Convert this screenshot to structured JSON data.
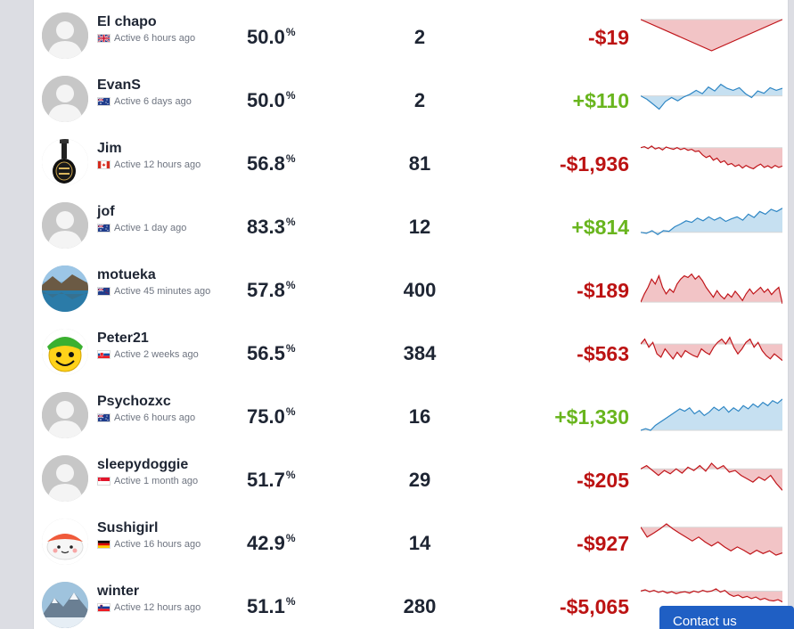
{
  "players": [
    {
      "name": "El chapo",
      "status": "Active 6 hours ago",
      "country": "uk",
      "avatar": "default",
      "win_pct": "50.0",
      "count": "2",
      "profit": "-$19",
      "trend": [
        0.95,
        0.0,
        0.95
      ]
    },
    {
      "name": "EvanS",
      "status": "Active 6 days ago",
      "country": "au",
      "avatar": "default",
      "win_pct": "50.0",
      "count": "2",
      "profit": "+$110",
      "trend": [
        0.55,
        0.45,
        0.3,
        0.15,
        0.38,
        0.5,
        0.4,
        0.52,
        0.6,
        0.72,
        0.62,
        0.82,
        0.7,
        0.9,
        0.78,
        0.72,
        0.8,
        0.62,
        0.5,
        0.7,
        0.63,
        0.8,
        0.72,
        0.78
      ]
    },
    {
      "name": "Jim",
      "status": "Active 12 hours ago",
      "country": "ca",
      "avatar": "guitar",
      "win_pct": "56.8",
      "count": "81",
      "profit": "-$1,936",
      "trend": [
        0.9,
        0.93,
        0.87,
        0.95,
        0.86,
        0.9,
        0.83,
        0.92,
        0.88,
        0.85,
        0.9,
        0.84,
        0.88,
        0.82,
        0.85,
        0.78,
        0.8,
        0.68,
        0.6,
        0.65,
        0.52,
        0.58,
        0.45,
        0.5,
        0.38,
        0.42,
        0.33,
        0.38,
        0.28,
        0.36,
        0.3,
        0.26,
        0.34,
        0.4,
        0.3,
        0.35,
        0.28,
        0.36,
        0.3,
        0.34
      ]
    },
    {
      "name": "jof",
      "status": "Active 1 day ago",
      "country": "au",
      "avatar": "default",
      "win_pct": "83.3",
      "count": "12",
      "profit": "+$814",
      "trend": [
        0.25,
        0.22,
        0.3,
        0.18,
        0.3,
        0.28,
        0.42,
        0.5,
        0.6,
        0.55,
        0.68,
        0.6,
        0.72,
        0.62,
        0.7,
        0.58,
        0.66,
        0.72,
        0.62,
        0.8,
        0.7,
        0.88,
        0.8,
        0.95,
        0.88,
        0.98
      ]
    },
    {
      "name": "motueka",
      "status": "Active 45 minutes ago",
      "country": "nz",
      "avatar": "lake",
      "win_pct": "57.8",
      "count": "400",
      "profit": "-$189",
      "trend": [
        0.05,
        0.3,
        0.5,
        0.75,
        0.6,
        0.85,
        0.5,
        0.3,
        0.45,
        0.35,
        0.6,
        0.75,
        0.85,
        0.8,
        0.9,
        0.75,
        0.85,
        0.7,
        0.5,
        0.35,
        0.2,
        0.4,
        0.25,
        0.15,
        0.3,
        0.2,
        0.38,
        0.25,
        0.1,
        0.3,
        0.45,
        0.3,
        0.4,
        0.5,
        0.35,
        0.45,
        0.28,
        0.4,
        0.5,
        0.0
      ]
    },
    {
      "name": "Peter21",
      "status": "Active 2 weeks ago",
      "country": "sk",
      "avatar": "smiley",
      "win_pct": "56.5",
      "count": "384",
      "profit": "-$563",
      "trend": [
        0.7,
        0.85,
        0.6,
        0.75,
        0.4,
        0.3,
        0.55,
        0.4,
        0.25,
        0.45,
        0.3,
        0.5,
        0.42,
        0.35,
        0.3,
        0.55,
        0.45,
        0.38,
        0.6,
        0.75,
        0.85,
        0.7,
        0.9,
        0.6,
        0.4,
        0.55,
        0.75,
        0.85,
        0.6,
        0.75,
        0.5,
        0.35,
        0.25,
        0.4,
        0.3,
        0.2
      ]
    },
    {
      "name": "Psychozxc",
      "status": "Active 6 hours ago",
      "country": "au",
      "avatar": "default",
      "win_pct": "75.0",
      "count": "16",
      "profit": "+$1,330",
      "trend": [
        0.0,
        0.05,
        0.0,
        0.15,
        0.25,
        0.35,
        0.45,
        0.55,
        0.65,
        0.58,
        0.68,
        0.5,
        0.6,
        0.45,
        0.55,
        0.7,
        0.6,
        0.72,
        0.55,
        0.68,
        0.58,
        0.75,
        0.65,
        0.8,
        0.7,
        0.85,
        0.75,
        0.9,
        0.82,
        0.95
      ]
    },
    {
      "name": "sleepydoggie",
      "status": "Active 1 month ago",
      "country": "sg",
      "avatar": "default",
      "win_pct": "51.7",
      "count": "29",
      "profit": "-$205",
      "trend": [
        0.75,
        0.85,
        0.7,
        0.55,
        0.7,
        0.6,
        0.75,
        0.62,
        0.8,
        0.7,
        0.85,
        0.68,
        0.92,
        0.75,
        0.85,
        0.65,
        0.7,
        0.55,
        0.45,
        0.35,
        0.5,
        0.4,
        0.55,
        0.3,
        0.1
      ]
    },
    {
      "name": "Sushigirl",
      "status": "Active 16 hours ago",
      "country": "de",
      "avatar": "sushi",
      "win_pct": "42.9",
      "count": "14",
      "profit": "-$927",
      "trend": [
        0.9,
        0.6,
        0.72,
        0.85,
        1.0,
        0.85,
        0.72,
        0.6,
        0.48,
        0.6,
        0.45,
        0.33,
        0.45,
        0.3,
        0.18,
        0.3,
        0.2,
        0.08,
        0.2,
        0.1,
        0.18,
        0.05,
        0.12
      ]
    },
    {
      "name": "winter",
      "status": "Active 12 hours ago",
      "country": "si",
      "avatar": "mountain",
      "win_pct": "51.1",
      "count": "280",
      "profit": "-$5,065",
      "trend": [
        0.88,
        0.92,
        0.86,
        0.9,
        0.84,
        0.88,
        0.82,
        0.86,
        0.8,
        0.84,
        0.86,
        0.82,
        0.88,
        0.84,
        0.9,
        0.86,
        0.88,
        0.95,
        0.85,
        0.9,
        0.78,
        0.72,
        0.76,
        0.68,
        0.72,
        0.65,
        0.7,
        0.62,
        0.66,
        0.6,
        0.58,
        0.62,
        0.55
      ]
    }
  ],
  "pct_symbol": "%",
  "contact_label": "Contact us",
  "colors": {
    "positive": "#69b51e",
    "negative": "#bc1313",
    "spark_up_line": "#2e86c4",
    "spark_up_fill": "#c6e0f1",
    "spark_down_line": "#c0151a",
    "spark_down_fill": "#f2c4c6",
    "baseline": "#d7d7d7"
  }
}
